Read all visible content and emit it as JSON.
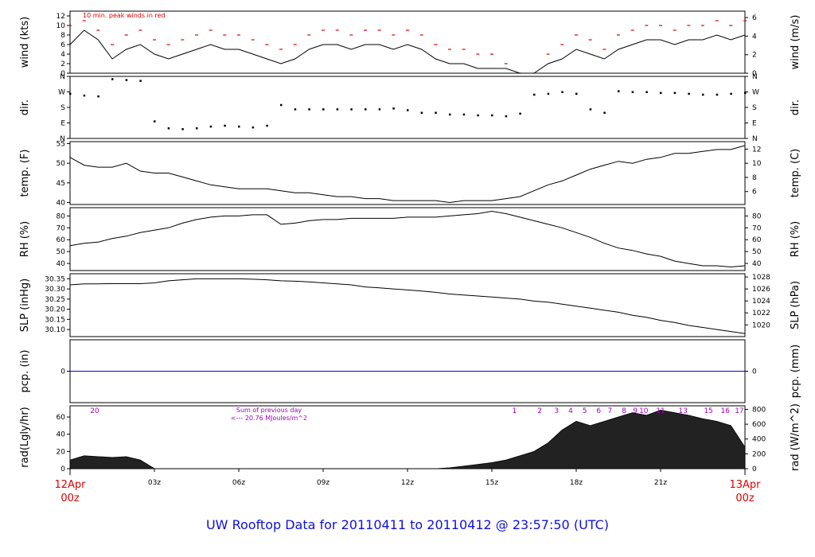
{
  "footer": {
    "title": "UW Rooftop Data for 20110411  to  20110412 @ 23:57:50  (UTC)"
  },
  "colors": {
    "axis": "#000000",
    "red": "#e00000",
    "blue": "#0000e0",
    "purple": "#a000c0",
    "trace": "#000000"
  },
  "chart_data": [
    {
      "id": "wind",
      "type": "line",
      "left_label": "wind (kts)",
      "right_label": "wind (m/s)",
      "annotation": "10 min. peak winds in red",
      "left_ticks": [
        "0",
        "2",
        "4",
        "6",
        "8",
        "10",
        "12"
      ],
      "left_ylim": [
        0,
        13
      ],
      "right_ticks": [
        "0",
        "2",
        "4",
        "6"
      ],
      "right_ylim": [
        0,
        6.7
      ],
      "series": [
        {
          "name": "10 min. peak winds",
          "color": "#e00000",
          "x": [
            0,
            0.5,
            1,
            1.5,
            2,
            2.5,
            3,
            3.5,
            4,
            4.5,
            5,
            5.5,
            6,
            6.5,
            7,
            7.5,
            8,
            8.5,
            9,
            9.5,
            10,
            10.5,
            11,
            11.5,
            12,
            12.5,
            13,
            13.5,
            14,
            14.5,
            15,
            15.5,
            16,
            16.5,
            17,
            17.5,
            18,
            18.5,
            19,
            19.5,
            20,
            20.5,
            21,
            21.5,
            22,
            22.5,
            23,
            23.5,
            24
          ],
          "values": [
            10,
            11,
            9,
            6,
            8,
            9,
            7,
            6,
            7,
            8,
            9,
            8,
            8,
            7,
            6,
            5,
            6,
            8,
            9,
            9,
            8,
            9,
            9,
            8,
            9,
            8,
            6,
            5,
            5,
            4,
            4,
            2,
            0,
            0,
            4,
            6,
            8,
            7,
            5,
            8,
            9,
            10,
            10,
            9,
            10,
            10,
            11,
            10,
            11
          ]
        },
        {
          "name": "wind",
          "color": "#000000",
          "x": [
            0,
            0.5,
            1,
            1.5,
            2,
            2.5,
            3,
            3.5,
            4,
            4.5,
            5,
            5.5,
            6,
            6.5,
            7,
            7.5,
            8,
            8.5,
            9,
            9.5,
            10,
            10.5,
            11,
            11.5,
            12,
            12.5,
            13,
            13.5,
            14,
            14.5,
            15,
            15.5,
            16,
            16.5,
            17,
            17.5,
            18,
            18.5,
            19,
            19.5,
            20,
            20.5,
            21,
            21.5,
            22,
            22.5,
            23,
            23.5,
            24
          ],
          "values": [
            6,
            9,
            7,
            3,
            5,
            6,
            4,
            3,
            4,
            5,
            6,
            5,
            5,
            4,
            3,
            2,
            3,
            5,
            6,
            6,
            5,
            6,
            6,
            5,
            6,
            5,
            3,
            2,
            2,
            1,
            1,
            1,
            0,
            0,
            2,
            3,
            5,
            4,
            3,
            5,
            6,
            7,
            7,
            6,
            7,
            7,
            8,
            7,
            8
          ]
        }
      ]
    },
    {
      "id": "dir",
      "type": "scatter",
      "left_label": "dir.",
      "right_label": "dir.",
      "left_ticks": [
        "N",
        "E",
        "S",
        "W",
        "N"
      ],
      "left_ylim": [
        0,
        360
      ],
      "right_ticks": [
        "N",
        "E",
        "S",
        "W",
        "N"
      ],
      "right_ylim": [
        0,
        360
      ],
      "series": [
        {
          "name": "dir",
          "color": "#000000",
          "x": [
            0,
            0.5,
            1,
            1.5,
            2,
            2.5,
            3,
            3.5,
            4,
            4.5,
            5,
            5.5,
            6,
            6.5,
            7,
            7.5,
            8,
            8.5,
            9,
            9.5,
            10,
            10.5,
            11,
            11.5,
            12,
            12.5,
            13,
            13.5,
            14,
            14.5,
            15,
            15.5,
            16,
            16.5,
            17,
            17.5,
            18,
            18.5,
            19,
            19.5,
            20,
            20.5,
            21,
            21.5,
            22,
            22.5,
            23,
            23.5,
            24
          ],
          "values": [
            260,
            250,
            245,
            345,
            340,
            335,
            100,
            60,
            55,
            60,
            70,
            75,
            70,
            65,
            75,
            195,
            170,
            170,
            170,
            170,
            170,
            170,
            170,
            175,
            165,
            150,
            150,
            140,
            140,
            135,
            135,
            130,
            145,
            255,
            260,
            270,
            260,
            170,
            150,
            275,
            270,
            270,
            265,
            265,
            260,
            255,
            255,
            260,
            265
          ]
        }
      ]
    },
    {
      "id": "temp",
      "type": "line",
      "left_label": "temp. (F)",
      "right_label": "temp. (C)",
      "left_ticks": [
        "40",
        "45",
        "50",
        "55"
      ],
      "left_ylim": [
        39.5,
        55.5
      ],
      "right_ticks": [
        "6",
        "8",
        "10",
        "12"
      ],
      "right_ylim": [
        4.17,
        13.06
      ],
      "series": [
        {
          "name": "temp",
          "color": "#000000",
          "x": [
            0,
            0.5,
            1,
            1.5,
            2,
            2.5,
            3,
            3.5,
            4,
            4.5,
            5,
            5.5,
            6,
            6.5,
            7,
            7.5,
            8,
            8.5,
            9,
            9.5,
            10,
            10.5,
            11,
            11.5,
            12,
            12.5,
            13,
            13.5,
            14,
            14.5,
            15,
            15.5,
            16,
            16.5,
            17,
            17.5,
            18,
            18.5,
            19,
            19.5,
            20,
            20.5,
            21,
            21.5,
            22,
            22.5,
            23,
            23.5,
            24
          ],
          "values": [
            51.5,
            49.5,
            49,
            49,
            50,
            48,
            47.5,
            47.5,
            46.5,
            45.5,
            44.5,
            44,
            43.5,
            43.5,
            43.5,
            43,
            42.5,
            42.5,
            42,
            41.5,
            41.5,
            41,
            41,
            40.5,
            40.5,
            40.5,
            40.5,
            40,
            40.5,
            40.5,
            40.5,
            41,
            41.5,
            43,
            44.5,
            45.5,
            47,
            48.5,
            49.5,
            50.5,
            50,
            51,
            51.5,
            52.5,
            52.5,
            53,
            53.5,
            53.5,
            54.5
          ]
        }
      ]
    },
    {
      "id": "rh",
      "type": "line",
      "left_label": "RH (%)",
      "right_label": "RH (%)",
      "left_ticks": [
        "40",
        "50",
        "60",
        "70",
        "80"
      ],
      "left_ylim": [
        34,
        87
      ],
      "right_ticks": [
        "40",
        "50",
        "60",
        "70",
        "80"
      ],
      "right_ylim": [
        34,
        87
      ],
      "series": [
        {
          "name": "RH",
          "color": "#000000",
          "x": [
            0,
            0.5,
            1,
            1.5,
            2,
            2.5,
            3,
            3.5,
            4,
            4.5,
            5,
            5.5,
            6,
            6.5,
            7,
            7.5,
            8,
            8.5,
            9,
            9.5,
            10,
            10.5,
            11,
            11.5,
            12,
            12.5,
            13,
            13.5,
            14,
            14.5,
            15,
            15.5,
            16,
            16.5,
            17,
            17.5,
            18,
            18.5,
            19,
            19.5,
            20,
            20.5,
            21,
            21.5,
            22,
            22.5,
            23,
            23.5,
            24
          ],
          "values": [
            55,
            57,
            58,
            61,
            63,
            66,
            68,
            70,
            74,
            77,
            79,
            80,
            80,
            81,
            81,
            73,
            74,
            76,
            77,
            77,
            78,
            78,
            78,
            78,
            79,
            79,
            79,
            80,
            81,
            82,
            84,
            82,
            79,
            76,
            73,
            70,
            66,
            62,
            57,
            53,
            51,
            48,
            46,
            42,
            40,
            38,
            38,
            37,
            38
          ]
        }
      ]
    },
    {
      "id": "slp",
      "type": "line",
      "left_label": "SLP (inHg)",
      "right_label": "SLP (hPa)",
      "left_ticks": [
        "30.10",
        "30.15",
        "30.20",
        "30.25",
        "30.30",
        "30.35"
      ],
      "left_ylim": [
        30.065,
        30.375
      ],
      "right_ticks": [
        "1020",
        "1022",
        "1024",
        "1026",
        "1028"
      ],
      "right_ylim": [
        1018.04,
        1028.54
      ],
      "series": [
        {
          "name": "SLP",
          "color": "#000000",
          "x": [
            0,
            0.5,
            1,
            1.5,
            2,
            2.5,
            3,
            3.5,
            4,
            4.5,
            5,
            5.5,
            6,
            6.5,
            7,
            7.5,
            8,
            8.5,
            9,
            9.5,
            10,
            10.5,
            11,
            11.5,
            12,
            12.5,
            13,
            13.5,
            14,
            14.5,
            15,
            15.5,
            16,
            16.5,
            17,
            17.5,
            18,
            18.5,
            19,
            19.5,
            20,
            20.5,
            21,
            21.5,
            22,
            22.5,
            23,
            23.5,
            24
          ],
          "values": [
            30.32,
            30.325,
            30.325,
            30.326,
            30.326,
            30.326,
            30.33,
            30.34,
            30.345,
            30.35,
            30.35,
            30.35,
            30.35,
            30.348,
            30.345,
            30.34,
            30.338,
            30.335,
            30.33,
            30.325,
            30.32,
            30.31,
            30.305,
            30.3,
            30.295,
            30.29,
            30.283,
            30.275,
            30.27,
            30.265,
            30.26,
            30.255,
            30.25,
            30.24,
            30.235,
            30.225,
            30.215,
            30.205,
            30.195,
            30.185,
            30.17,
            30.16,
            30.145,
            30.135,
            30.12,
            30.11,
            30.1,
            30.09,
            30.08
          ]
        }
      ]
    },
    {
      "id": "pcp",
      "type": "line",
      "left_label": "pcp. (in)",
      "right_label": "pcp. (mm)",
      "left_ticks": [
        "0"
      ],
      "left_ylim": [
        -1,
        1
      ],
      "right_ticks": [
        "0"
      ],
      "right_ylim": [
        -1,
        1
      ],
      "series": [
        {
          "name": "pcp",
          "color": "#0000e0",
          "x": [
            0,
            24
          ],
          "values": [
            0,
            0
          ]
        }
      ]
    },
    {
      "id": "rad",
      "type": "area",
      "left_label": "rad(Lgly/hr)",
      "right_label": "rad (W/m^2)",
      "left_ticks": [
        "0",
        "20",
        "40",
        "60"
      ],
      "left_ylim": [
        0,
        73
      ],
      "right_ticks": [
        "0",
        "200",
        "400",
        "600",
        "800"
      ],
      "right_ylim": [
        0,
        848
      ],
      "annotation_top": "20",
      "annotation_sum_line1": "Sum of previous day",
      "annotation_sum_line2": "<--- 20.76 MJoules/m^2",
      "hour_labels": [
        "1",
        "2",
        "3",
        "4",
        "5",
        "6",
        "7",
        "8",
        "9",
        "10",
        "11",
        "13",
        "15",
        "16",
        "17"
      ],
      "hour_labels_x": [
        15.8,
        16.7,
        17.3,
        17.8,
        18.3,
        18.8,
        19.2,
        19.7,
        20.1,
        20.4,
        21.0,
        21.8,
        22.7,
        23.3,
        23.8
      ],
      "series": [
        {
          "name": "rad",
          "color": "#000000",
          "x": [
            0,
            0.5,
            1,
            1.5,
            2,
            2.5,
            3,
            3.5,
            4,
            4.5,
            5,
            5.5,
            6,
            6.5,
            7,
            7.5,
            8,
            8.5,
            9,
            9.5,
            10,
            10.5,
            11,
            11.5,
            12,
            12.5,
            13,
            13.5,
            14,
            14.5,
            15,
            15.5,
            16,
            16.5,
            17,
            17.5,
            18,
            18.5,
            19,
            19.5,
            20,
            20.5,
            21,
            21.5,
            22,
            22.5,
            23,
            23.5,
            24
          ],
          "values": [
            10,
            15,
            14,
            13,
            14,
            10,
            0,
            0,
            0,
            0,
            0,
            0,
            0,
            0,
            0,
            0,
            0,
            0,
            0,
            0,
            0,
            0,
            0,
            0,
            0,
            0,
            0,
            1,
            3,
            5,
            7,
            10,
            15,
            20,
            30,
            45,
            55,
            50,
            55,
            60,
            65,
            62,
            68,
            65,
            62,
            58,
            55,
            50,
            25
          ]
        }
      ]
    }
  ],
  "time_axis": {
    "tick_labels": [
      "03z",
      "06z",
      "09z",
      "12z",
      "15z",
      "18z",
      "21z"
    ],
    "tick_hours": [
      3,
      6,
      9,
      12,
      15,
      18,
      21
    ],
    "start_label_line1": "12Apr",
    "start_label_line2": "00z",
    "end_label_line1": "13Apr",
    "end_label_line2": "00z",
    "xlim": [
      0,
      24
    ]
  }
}
